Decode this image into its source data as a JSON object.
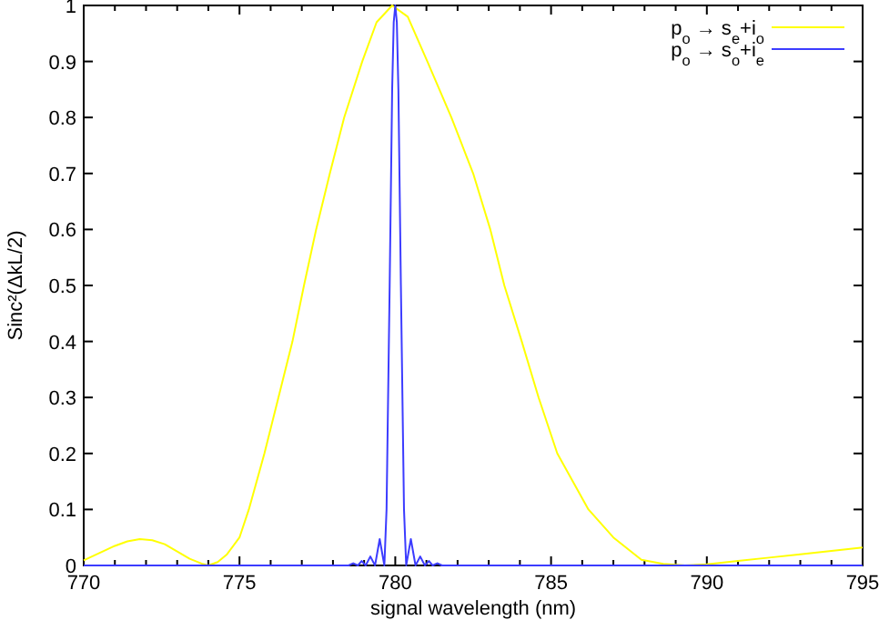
{
  "chart_data": {
    "type": "line",
    "xlabel": "signal wavelength (nm)",
    "ylabel": "Sinc²(ΔkL/2)",
    "xlim": [
      770,
      795
    ],
    "ylim": [
      0,
      1
    ],
    "xticks": [
      770,
      {
        "value": 771,
        "label": null
      },
      {
        "value": 772,
        "label": null
      },
      {
        "value": 773,
        "label": null
      },
      {
        "value": 774,
        "label": null
      },
      775,
      {
        "value": 776,
        "label": null
      },
      {
        "value": 777,
        "label": null
      },
      {
        "value": 778,
        "label": null
      },
      {
        "value": 779,
        "label": null
      },
      780,
      {
        "value": 781,
        "label": null
      },
      {
        "value": 782,
        "label": null
      },
      {
        "value": 783,
        "label": null
      },
      {
        "value": 784,
        "label": null
      },
      785,
      {
        "value": 786,
        "label": null
      },
      {
        "value": 787,
        "label": null
      },
      {
        "value": 788,
        "label": null
      },
      {
        "value": 789,
        "label": null
      },
      790,
      {
        "value": 791,
        "label": null
      },
      {
        "value": 792,
        "label": null
      },
      {
        "value": 793,
        "label": null
      },
      {
        "value": 794,
        "label": null
      },
      795
    ],
    "yticks": [
      0,
      0.1,
      0.2,
      0.3,
      0.4,
      0.5,
      0.6,
      0.7,
      0.8,
      0.9,
      1
    ],
    "legend": "top right",
    "grid": false,
    "marker": "none",
    "line_style": "solid",
    "series": [
      {
        "name": "p$_{o}$ → s$_{e}$+i$_{o}$",
        "color": "#ffff00",
        "x": [
          770,
          770.5,
          771,
          771.4,
          771.8,
          772.2,
          772.6,
          773,
          773.4,
          773.8,
          774,
          774.3,
          774.6,
          775,
          775.3,
          775.8,
          776.25,
          776.7,
          777.07,
          777.46,
          777.9,
          778.36,
          778.94,
          779.4,
          779.9,
          780.4,
          781.03,
          781.8,
          782.5,
          783.05,
          783.5,
          784.06,
          784.6,
          785.2,
          786.2,
          787,
          787.9,
          788.6,
          789.3,
          790,
          791,
          792,
          793,
          794,
          795
        ],
        "values": [
          0.009,
          0.022,
          0.035,
          0.043,
          0.047,
          0.045,
          0.038,
          0.025,
          0.012,
          0.003,
          0,
          0.006,
          0.02,
          0.05,
          0.1,
          0.2,
          0.3,
          0.4,
          0.5,
          0.6,
          0.7,
          0.8,
          0.9,
          0.97,
          1,
          0.98,
          0.9,
          0.8,
          0.7,
          0.6,
          0.5,
          0.4,
          0.3,
          0.2,
          0.1,
          0.05,
          0.01,
          0.003,
          0,
          0.002,
          0.008,
          0.014,
          0.02,
          0.026,
          0.032
        ]
      },
      {
        "name": "p$_{o}$ → s$_{o}$+i$_{e}$",
        "color": "#3c3cff",
        "x": [
          770,
          778,
          778.5,
          778.65,
          778.8,
          778.92,
          779.05,
          779.2,
          779.35,
          779.5,
          779.65,
          779.72,
          779.82,
          779.9,
          779.95,
          780,
          780.05,
          780.1,
          780.18,
          780.28,
          780.35,
          780.5,
          780.65,
          780.8,
          780.95,
          781.08,
          781.2,
          781.35,
          781.5,
          782,
          795
        ],
        "values": [
          0,
          0,
          0,
          0.004,
          0,
          0.008,
          0,
          0.016,
          0,
          0.047,
          0,
          0.1,
          0.5,
          0.85,
          0.97,
          1,
          0.97,
          0.85,
          0.5,
          0.1,
          0,
          0.047,
          0,
          0.016,
          0,
          0.008,
          0,
          0.004,
          0,
          0,
          0
        ]
      }
    ]
  }
}
